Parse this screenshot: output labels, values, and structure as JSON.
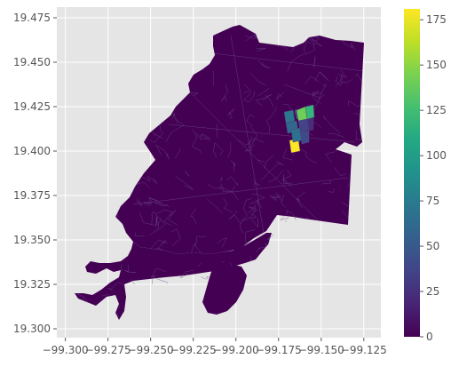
{
  "chart_data": {
    "type": "choropleth",
    "x_ticks": [
      "−99.300",
      "−99.275",
      "−99.250",
      "−99.225",
      "−99.200",
      "−99.175",
      "−99.150",
      "−99.125"
    ],
    "x_values": [
      -99.3,
      -99.275,
      -99.25,
      -99.225,
      -99.2,
      -99.175,
      -99.15,
      -99.125
    ],
    "y_ticks": [
      "19.300",
      "19.325",
      "19.350",
      "19.375",
      "19.400",
      "19.425",
      "19.450",
      "19.475"
    ],
    "y_values": [
      19.3,
      19.325,
      19.35,
      19.375,
      19.4,
      19.425,
      19.45,
      19.475
    ],
    "xlim": [
      -99.305,
      -99.115
    ],
    "ylim": [
      19.295,
      19.481
    ],
    "grid": true,
    "colorbar": {
      "cmap": "viridis",
      "range": [
        0,
        181
      ],
      "ticks": [
        "0",
        "25",
        "50",
        "75",
        "100",
        "125",
        "150",
        "175"
      ],
      "tick_values": [
        0,
        25,
        50,
        75,
        100,
        125,
        150,
        175
      ]
    },
    "highlighted_cells": [
      {
        "value": 70,
        "color": "#2a788e"
      },
      {
        "value": 40,
        "color": "#3b528b"
      },
      {
        "value": 130,
        "color": "#6ece58"
      },
      {
        "value": 110,
        "color": "#35b779"
      },
      {
        "value": 55,
        "color": "#31688e"
      },
      {
        "value": 180,
        "color": "#fde725"
      },
      {
        "value": 60,
        "color": "#2c728e"
      },
      {
        "value": 35,
        "color": "#414487"
      },
      {
        "value": 20,
        "color": "#472d7b"
      },
      {
        "value": 45,
        "color": "#3e4a89"
      }
    ]
  },
  "colors": {
    "region_fill": "#440154",
    "axes_background": "#e5e5e5",
    "grid": "#ffffff"
  }
}
